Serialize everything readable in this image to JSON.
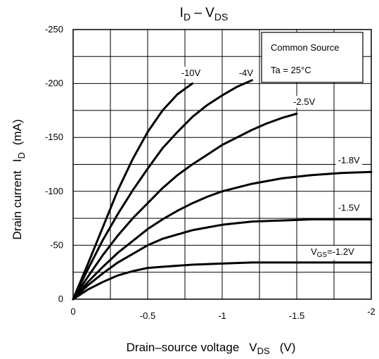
{
  "chart_data": {
    "type": "line",
    "title": {
      "base": "I",
      "sub": "D",
      "mid": " – V",
      "sub2": "DS"
    },
    "xlabel": {
      "text": "Drain–source voltage",
      "sym": "V",
      "sub": "DS",
      "unit": "(V)"
    },
    "ylabel": {
      "text": "Drain current",
      "sym": "I",
      "sub": "D",
      "unit": "(mA)"
    },
    "xlim": [
      0,
      -2
    ],
    "ylim": [
      0,
      -250
    ],
    "grid": true,
    "x_ticks": [
      {
        "v": 0,
        "label": "0"
      },
      {
        "v": -0.5,
        "label": "-0.5"
      },
      {
        "v": -1,
        "label": "-1"
      },
      {
        "v": -1.5,
        "label": "-1.5"
      },
      {
        "v": -2,
        "label": "-2"
      }
    ],
    "y_ticks": [
      {
        "v": 0,
        "label": "0"
      },
      {
        "v": -50,
        "label": "-50"
      },
      {
        "v": -100,
        "label": "-100"
      },
      {
        "v": -150,
        "label": "-150"
      },
      {
        "v": -200,
        "label": "-200"
      },
      {
        "v": -250,
        "label": "-250"
      }
    ],
    "annotation_box": {
      "line1": "Common Source",
      "line2": "Ta = 25°C"
    },
    "series": [
      {
        "name": "-10V",
        "x": [
          0,
          -0.1,
          -0.2,
          -0.3,
          -0.4,
          -0.5,
          -0.6,
          -0.7,
          -0.8
        ],
        "y": [
          0,
          -33,
          -67,
          -101,
          -130,
          -155,
          -175,
          -190,
          -200
        ]
      },
      {
        "name": "-4V",
        "x": [
          0,
          -0.1,
          -0.2,
          -0.3,
          -0.4,
          -0.5,
          -0.6,
          -0.7,
          -0.8,
          -0.9,
          -1.0,
          -1.1,
          -1.2
        ],
        "y": [
          0,
          -28,
          -55,
          -79,
          -101,
          -121,
          -140,
          -155,
          -169,
          -180,
          -189,
          -197,
          -203
        ]
      },
      {
        "name": "-2.5V",
        "x": [
          0,
          -0.1,
          -0.2,
          -0.3,
          -0.4,
          -0.5,
          -0.6,
          -0.7,
          -0.8,
          -0.9,
          -1.0,
          -1.1,
          -1.2,
          -1.3,
          -1.4,
          -1.5
        ],
        "y": [
          0,
          -21,
          -41,
          -59,
          -75,
          -89,
          -103,
          -115,
          -125,
          -134,
          -143,
          -150,
          -157,
          -163,
          -168,
          -172
        ]
      },
      {
        "name": "-1.8V",
        "x": [
          0,
          -0.1,
          -0.2,
          -0.3,
          -0.4,
          -0.5,
          -0.6,
          -0.7,
          -0.8,
          -0.9,
          -1.0,
          -1.2,
          -1.4,
          -1.6,
          -1.8,
          -2.0
        ],
        "y": [
          0,
          -16,
          -30,
          -43,
          -54,
          -65,
          -74,
          -82,
          -89,
          -95,
          -100,
          -107,
          -112,
          -115,
          -117,
          -118
        ]
      },
      {
        "name": "-1.5V",
        "x": [
          0,
          -0.1,
          -0.2,
          -0.3,
          -0.4,
          -0.5,
          -0.6,
          -0.8,
          -1.0,
          -1.2,
          -1.4,
          -1.6,
          -1.8,
          -2.0
        ],
        "y": [
          0,
          -13,
          -24,
          -34,
          -42,
          -50,
          -56,
          -64,
          -69,
          -72,
          -73,
          -74,
          -74,
          -74
        ]
      },
      {
        "name": "-1.2V",
        "x": [
          0,
          -0.1,
          -0.2,
          -0.3,
          -0.4,
          -0.5,
          -0.6,
          -0.8,
          -1.0,
          -1.2,
          -1.5,
          -2.0
        ],
        "y": [
          0,
          -9,
          -16,
          -22,
          -26,
          -29,
          -30,
          -32,
          -33,
          -34,
          -34,
          -34
        ]
      }
    ],
    "curve_labels": [
      {
        "series": "-10V",
        "text": "-10V",
        "x": -0.79,
        "y": -207,
        "prefix": "",
        "sub": ""
      },
      {
        "series": "-4V",
        "text": "-4V",
        "x": -1.16,
        "y": -207,
        "prefix": "",
        "sub": ""
      },
      {
        "series": "-2.5V",
        "text": "-2.5V",
        "x": -1.55,
        "y": -180,
        "prefix": "",
        "sub": ""
      },
      {
        "series": "-1.8V",
        "text": "-1.8V",
        "x": -1.85,
        "y": -126,
        "prefix": "",
        "sub": ""
      },
      {
        "series": "-1.5V",
        "text": "-1.5V",
        "x": -1.85,
        "y": -82,
        "prefix": "",
        "sub": ""
      },
      {
        "series": "-1.2V",
        "text": "=-1.2V",
        "x": -1.74,
        "y": -41,
        "prefix": "V",
        "sub": "GS"
      }
    ]
  }
}
